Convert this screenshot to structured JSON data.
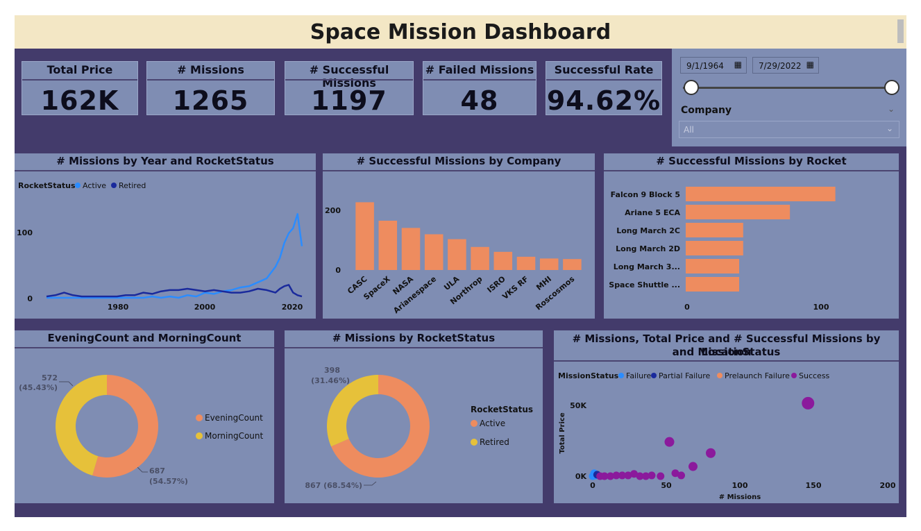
{
  "dashboard": {
    "title": "Space Mission Dashboard"
  },
  "kpis": [
    {
      "label": "Total Price",
      "value": "162K"
    },
    {
      "label": "# Missions",
      "value": "1265"
    },
    {
      "label": "# Successful Missions",
      "value": "1197"
    },
    {
      "label": "# Failed Missions",
      "value": "48"
    },
    {
      "label": "Successful Rate",
      "value": "94.62%"
    }
  ],
  "filters": {
    "start_date": "9/1/1964",
    "end_date": "7/29/2022",
    "company_label": "Company",
    "company_value": "All",
    "calendar_icon": "calendar-icon"
  },
  "charts": {
    "line": {
      "title": "# Missions by Year and RocketStatus",
      "legend_title": "RocketStatus",
      "x_ticks": [
        "1980",
        "2000",
        "2020"
      ],
      "y_ticks": [
        "0",
        "100"
      ]
    },
    "company": {
      "title": "# Successful Missions by Company",
      "y_ticks": [
        "0",
        "200"
      ]
    },
    "rocket": {
      "title": "# Successful Missions by Rocket",
      "x_ticks": [
        "0",
        "100"
      ]
    },
    "evening": {
      "title": "EveningCount and MorningCount",
      "label_a_value": "572",
      "label_a_pct": "(45.43%)",
      "label_b_value": "687",
      "label_b_pct": "(54.57%)"
    },
    "status": {
      "title": "# Missions by RocketStatus",
      "legend_title": "RocketStatus",
      "label_a_value": "398",
      "label_a_pct": "(31.46%)",
      "label_b": "867 (68.54%)"
    },
    "scatter": {
      "title_line1": "# Missions, Total Price and # Successful Missions by Location",
      "title_line2": "and MissionStatus",
      "legend_title": "MissionStatus",
      "x_ticks": [
        "0",
        "50",
        "100",
        "150",
        "200"
      ],
      "y_ticks": [
        "0K",
        "50K"
      ]
    }
  },
  "chart_data": [
    {
      "type": "line",
      "title": "# Missions by Year and RocketStatus",
      "xlabel": "",
      "ylabel": "",
      "xlim": [
        1964,
        2022
      ],
      "ylim": [
        0,
        140
      ],
      "x": [
        1964,
        1966,
        1968,
        1970,
        1972,
        1974,
        1976,
        1978,
        1980,
        1982,
        1984,
        1986,
        1988,
        1990,
        1992,
        1994,
        1996,
        1998,
        2000,
        2002,
        2004,
        2006,
        2008,
        2010,
        2012,
        2014,
        2016,
        2017,
        2018,
        2019,
        2020,
        2021,
        2022
      ],
      "series": [
        {
          "name": "Active",
          "color": "#2b8cff",
          "values": [
            0,
            0,
            0,
            0,
            0,
            0,
            0,
            0,
            0,
            0,
            0,
            0,
            2,
            0,
            2,
            0,
            4,
            2,
            8,
            6,
            10,
            12,
            16,
            18,
            24,
            30,
            48,
            62,
            85,
            100,
            108,
            130,
            80
          ]
        },
        {
          "name": "Retired",
          "color": "#1a2a9c",
          "values": [
            2,
            4,
            8,
            4,
            2,
            2,
            2,
            2,
            2,
            4,
            4,
            8,
            6,
            10,
            12,
            12,
            14,
            12,
            10,
            12,
            10,
            8,
            8,
            10,
            14,
            12,
            8,
            14,
            18,
            20,
            8,
            4,
            2
          ]
        }
      ],
      "legend": "top-left"
    },
    {
      "type": "bar",
      "title": "# Successful Missions by Company",
      "categories": [
        "CASC",
        "SpaceX",
        "NASA",
        "Arianespace",
        "ULA",
        "Northrop",
        "ISRO",
        "VKS RF",
        "MHI",
        "Roscosmos"
      ],
      "values": [
        235,
        171,
        146,
        124,
        107,
        80,
        63,
        46,
        40,
        38
      ],
      "ylim": [
        0,
        260
      ],
      "color": "#ee8c5f"
    },
    {
      "type": "bar",
      "orientation": "horizontal",
      "title": "# Successful Missions by Rocket",
      "categories": [
        "Falcon 9 Block 5",
        "Ariane 5 ECA",
        "Long March 2C",
        "Long March 2D",
        "Long March 3...",
        "Space Shuttle ..."
      ],
      "values": [
        112,
        78,
        43,
        43,
        40,
        40
      ],
      "xlim": [
        0,
        120
      ],
      "color": "#ee8c5f"
    },
    {
      "type": "pie",
      "title": "EveningCount and MorningCount",
      "donut": true,
      "labels": [
        "EveningCount",
        "MorningCount"
      ],
      "values": [
        687,
        572
      ],
      "colors": [
        "#ee8c5f",
        "#e6c13a"
      ],
      "legend": "right"
    },
    {
      "type": "pie",
      "title": "# Missions by RocketStatus",
      "donut": true,
      "labels": [
        "Active",
        "Retired"
      ],
      "values": [
        867,
        398
      ],
      "colors": [
        "#ee8c5f",
        "#e6c13a"
      ],
      "legend": "right"
    },
    {
      "type": "scatter",
      "title": "# Missions, Total Price and # Successful Missions by Location and MissionStatus",
      "xlabel": "# Missions",
      "ylabel": "Total Price",
      "xlim": [
        0,
        200
      ],
      "ylim": [
        0,
        55000
      ],
      "legend": "top-left",
      "series": [
        {
          "name": "Failure",
          "color": "#2b8cff",
          "points": [
            [
              1,
              2000
            ],
            [
              2,
              500
            ],
            [
              0,
              0
            ]
          ]
        },
        {
          "name": "Partial Failure",
          "color": "#1a2a9c",
          "points": [
            [
              3,
              1000
            ]
          ]
        },
        {
          "name": "Prelaunch Failure",
          "color": "#ee8c5f",
          "points": []
        },
        {
          "name": "Success",
          "color": "#8b1a9c",
          "points": [
            [
              5,
              0
            ],
            [
              8,
              0
            ],
            [
              12,
              0
            ],
            [
              16,
              500
            ],
            [
              20,
              500
            ],
            [
              24,
              500
            ],
            [
              28,
              1500
            ],
            [
              32,
              0
            ],
            [
              36,
              0
            ],
            [
              40,
              500
            ],
            [
              46,
              0
            ],
            [
              52,
              23000
            ],
            [
              56,
              2000
            ],
            [
              60,
              500
            ],
            [
              68,
              6500
            ],
            [
              80,
              15500
            ],
            [
              146,
              49000
            ]
          ]
        }
      ]
    }
  ]
}
